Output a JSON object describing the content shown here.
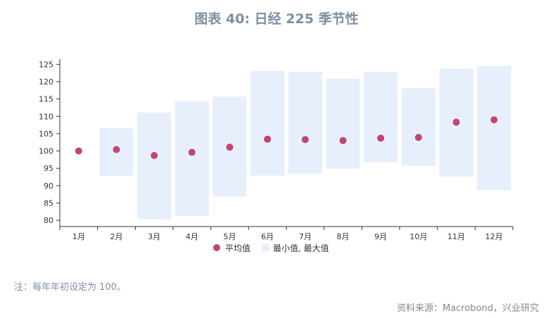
{
  "chart_data": {
    "type": "range-dot",
    "title": "图表 40: 日经 225 季节性",
    "categories": [
      "1月",
      "2月",
      "3月",
      "4月",
      "5月",
      "6月",
      "7月",
      "8月",
      "9月",
      "10月",
      "11月",
      "12月"
    ],
    "series": [
      {
        "name": "平均值",
        "type": "scatter",
        "color": "#c0476b",
        "values": [
          100,
          100.4,
          98.7,
          99.6,
          101.1,
          103.4,
          103.3,
          103.0,
          103.7,
          103.9,
          108.3,
          109.0
        ]
      },
      {
        "name": "最小值, 最大值",
        "type": "range",
        "color": "#e8effc",
        "min": [
          null,
          92.8,
          80.3,
          81.3,
          86.8,
          92.9,
          93.4,
          94.9,
          96.7,
          95.7,
          92.6,
          88.7
        ],
        "max": [
          null,
          106.6,
          111.1,
          114.4,
          115.7,
          123.1,
          122.9,
          120.9,
          122.9,
          118.1,
          123.8,
          124.5
        ]
      }
    ],
    "yticks": [
      80,
      85,
      90,
      95,
      100,
      105,
      110,
      115,
      120,
      125
    ],
    "ylim": [
      78.2,
      126.5
    ],
    "legend_position": "bottom"
  },
  "note": "注：每年年初设定为 100。",
  "source": "资料来源：Macrobond，兴业研究"
}
